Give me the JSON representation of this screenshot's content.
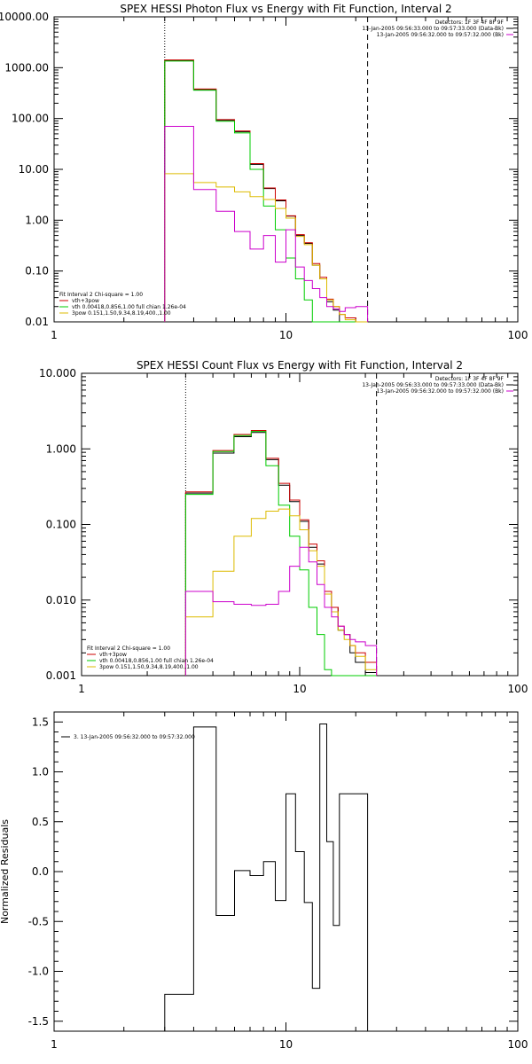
{
  "chart_data": [
    {
      "type": "line",
      "title": "SPEX HESSI Photon Flux vs Energy with Fit Function, Interval 2",
      "xscale": "log",
      "yscale": "log",
      "xlim": [
        1,
        100
      ],
      "ylim": [
        0.01,
        10000
      ],
      "ylim_plot": [
        0.0085,
        10000
      ],
      "xticks": [
        "1",
        "10",
        "100"
      ],
      "yticks": [
        "0.01",
        "0.10",
        "1.00",
        "10.00",
        "100.00",
        "1000.00",
        "10000.00"
      ],
      "ytick_values": [
        0.01,
        0.1,
        1,
        10,
        100,
        1000,
        10000
      ],
      "legend_tr": [
        {
          "text": "Detectors: 1F 3F 4F 8F 9F",
          "color": ""
        },
        {
          "text": "13-Jan-2005 09:56:33.000 to 09:57:33.000 (Data-Bk)",
          "color": "#000000"
        },
        {
          "text": "13-Jan-2005 09:56:32.000 to 09:57:32.000 (Bk)",
          "color": "#cc00cc"
        }
      ],
      "legend_bl": [
        {
          "text": "Fit Interval  2   Chi-square = 1.00",
          "color": ""
        },
        {
          "text": "vth+3pow",
          "color": "#cc0000"
        },
        {
          "text": "vth 0.00418,0.856,1.00  full chian 1.26e-04",
          "color": "#00cc00"
        },
        {
          "text": "3pow 0.151,1.50,9.34,8.19,400.,1.00",
          "color": "#ddbb00"
        }
      ],
      "vlines": [
        {
          "x": 3.0,
          "style": "dotted"
        },
        {
          "x": 22.5,
          "style": "dashed"
        }
      ],
      "bin_edges": [
        3.0,
        4.0,
        5.0,
        6.0,
        7.0,
        8.0,
        9.0,
        10.0,
        11.0,
        12.0,
        13.0,
        14.0,
        15.0,
        16.0,
        17.0,
        18.0,
        20.0,
        22.5
      ],
      "series": [
        {
          "name": "Data-Bk",
          "color": "#000000",
          "values": [
            1400,
            370,
            92,
            55,
            12.5,
            4.2,
            2.4,
            1.2,
            0.5,
            0.35,
            0.13,
            0.07,
            0.025,
            0.017,
            0.01,
            0.0085,
            0.0085
          ]
        },
        {
          "name": "vth+3pow",
          "color": "#cc0000",
          "values": [
            1420,
            380,
            95,
            57,
            13,
            4.3,
            2.5,
            1.22,
            0.52,
            0.36,
            0.14,
            0.075,
            0.028,
            0.02,
            0.014,
            0.012,
            0.0095
          ]
        },
        {
          "name": "vth",
          "color": "#00cc00",
          "values": [
            1350,
            360,
            88,
            52,
            10,
            1.9,
            0.65,
            0.18,
            0.07,
            0.027,
            0.0085,
            0.0085,
            0.0085,
            0.0085,
            0.0085,
            0.0085,
            0.0085
          ]
        },
        {
          "name": "3pow",
          "color": "#ddbb00",
          "values": [
            8.2,
            5.5,
            4.5,
            3.6,
            2.9,
            2.55,
            1.7,
            1.1,
            0.48,
            0.33,
            0.13,
            0.07,
            0.027,
            0.02,
            0.014,
            0.011,
            0.009
          ]
        },
        {
          "name": "Bk",
          "color": "#cc00cc",
          "values": [
            70,
            4,
            1.5,
            0.6,
            0.27,
            0.5,
            0.15,
            0.65,
            0.12,
            0.065,
            0.045,
            0.03,
            0.02,
            0.018,
            0.016,
            0.019,
            0.02
          ]
        }
      ]
    },
    {
      "type": "line",
      "title": "SPEX HESSI Count Flux vs Energy with Fit Function, Interval 2",
      "xscale": "log",
      "yscale": "log",
      "xlim": [
        1,
        100
      ],
      "ylim": [
        0.001,
        10
      ],
      "ylim_plot": [
        0.001,
        10
      ],
      "xticks": [
        "1",
        "10",
        "100"
      ],
      "yticks": [
        "0.001",
        "0.010",
        "0.100",
        "1.000",
        "10.000"
      ],
      "ytick_values": [
        0.001,
        0.01,
        0.1,
        1,
        10
      ],
      "legend_tr": [
        {
          "text": "Detectors: 1F 3F 4F 8F 9F",
          "color": ""
        },
        {
          "text": "13-Jan-2005 09:56:33.000 to 09:57:33.000 (Data-Bk)",
          "color": "#000000"
        },
        {
          "text": "13-Jan-2005 09:56:32.000 to 09:57:32.000 (Bk)",
          "color": "#cc00cc"
        }
      ],
      "legend_bl": [
        {
          "text": "Fit Interval  2   Chi-square = 1.00",
          "color": ""
        },
        {
          "text": "vth+3pow",
          "color": "#cc0000"
        },
        {
          "text": "vth 0.00418,0.856,1.00  full chian 1.26e-04",
          "color": "#00cc00"
        },
        {
          "text": "3pow 0.151,1.50,9.34,8.19,400.,1.00",
          "color": "#ddbb00"
        }
      ],
      "vlines": [
        {
          "x": 3.0,
          "style": "dotted"
        },
        {
          "x": 22.5,
          "style": "dashed"
        }
      ],
      "bin_edges": [
        3.0,
        4.0,
        5.0,
        6.0,
        7.0,
        8.0,
        9.0,
        10.0,
        11.0,
        12.0,
        13.0,
        14.0,
        15.0,
        16.0,
        17.0,
        18.0,
        20.0,
        22.5
      ],
      "series": [
        {
          "name": "Data-Bk",
          "color": "#000000",
          "values": [
            0.26,
            0.88,
            1.45,
            1.65,
            0.72,
            0.33,
            0.2,
            0.11,
            0.05,
            0.03,
            0.012,
            0.008,
            0.004,
            0.0035,
            0.002,
            0.0015,
            0.0011
          ]
        },
        {
          "name": "vth+3pow",
          "color": "#cc0000",
          "values": [
            0.27,
            0.95,
            1.55,
            1.75,
            0.75,
            0.35,
            0.21,
            0.115,
            0.055,
            0.033,
            0.013,
            0.008,
            0.0045,
            0.0035,
            0.0025,
            0.002,
            0.0015
          ]
        },
        {
          "name": "vth",
          "color": "#00cc00",
          "values": [
            0.25,
            0.92,
            1.5,
            1.7,
            0.6,
            0.18,
            0.07,
            0.025,
            0.008,
            0.0035,
            0.0012,
            0.001,
            0.001,
            0.001,
            0.001,
            0.001,
            0.001
          ]
        },
        {
          "name": "3pow",
          "color": "#ddbb00",
          "values": [
            0.006,
            0.024,
            0.07,
            0.12,
            0.15,
            0.16,
            0.13,
            0.085,
            0.045,
            0.028,
            0.012,
            0.007,
            0.004,
            0.003,
            0.0025,
            0.0018,
            0.0012
          ]
        },
        {
          "name": "Bk",
          "color": "#cc00cc",
          "values": [
            0.013,
            0.0095,
            0.0088,
            0.0085,
            0.0088,
            0.013,
            0.028,
            0.05,
            0.032,
            0.016,
            0.008,
            0.006,
            0.0045,
            0.0035,
            0.003,
            0.0028,
            0.0025
          ]
        }
      ]
    },
    {
      "type": "line",
      "title": "",
      "xscale": "log",
      "yscale": "linear",
      "xlim": [
        1,
        100
      ],
      "ylim": [
        -1.6,
        1.6
      ],
      "ylabel": "Normalized Residuals",
      "xticks": [
        "1",
        "10",
        "100"
      ],
      "yticks": [
        "-1.5",
        "-1.0",
        "-0.5",
        "0.0",
        "0.5",
        "1.0",
        "1.5"
      ],
      "ytick_values": [
        -1.5,
        -1.0,
        -0.5,
        0.0,
        0.5,
        1.0,
        1.5
      ],
      "legend_tl": [
        {
          "text": "3. 13-Jan-2005 09:56:32.000 to 09:57:32.000",
          "color": "#000000"
        }
      ],
      "bin_edges": [
        3.0,
        4.0,
        5.0,
        6.0,
        7.0,
        8.0,
        9.0,
        10.0,
        11.0,
        12.0,
        13.0,
        14.0,
        15.0,
        16.0,
        17.0,
        18.0,
        20.0,
        22.5
      ],
      "series": [
        {
          "name": "",
          "color": "#000000",
          "values": [
            -1.23,
            1.45,
            -0.44,
            0.01,
            -0.04,
            0.1,
            -0.29,
            0.78,
            0.2,
            -0.31,
            -1.17,
            1.48,
            0.3,
            -0.54,
            0.78,
            0.78,
            0.78
          ]
        }
      ]
    }
  ]
}
